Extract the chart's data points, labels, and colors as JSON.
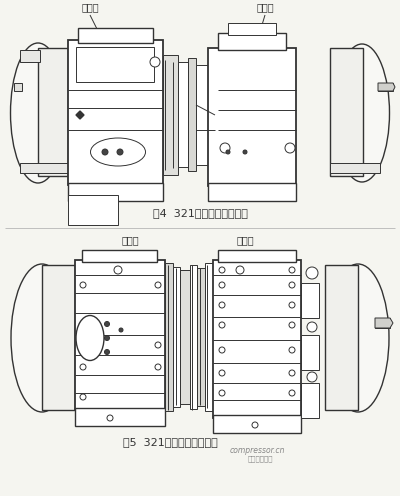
{
  "bg_color": "#f5f5f0",
  "line_color": "#333333",
  "fig4_caption": "图4  321螺杆压缩机正视图",
  "fig5_caption": "图5  321螺杆压缩机俯视图",
  "label_left1": "平衡腔",
  "label_right1": "平衡腔",
  "label_left2": "平衡腔",
  "label_right2": "平衡腔",
  "watermark1": "compressor.cn",
  "watermark2": "中国压缩机网"
}
